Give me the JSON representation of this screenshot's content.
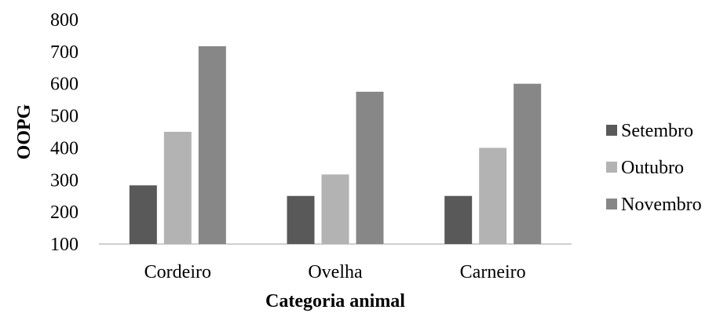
{
  "chart_data": {
    "type": "bar",
    "title": "",
    "xlabel": "Categoria animal",
    "ylabel": "OOPG",
    "categories": [
      "Cordeiro",
      "Ovelha",
      "Carneiro"
    ],
    "series": [
      {
        "name": "Setembro",
        "values": [
          283,
          250,
          250
        ],
        "color": "#595959"
      },
      {
        "name": "Outubro",
        "values": [
          450,
          317,
          400
        ],
        "color": "#b3b3b3"
      },
      {
        "name": "Novembro",
        "values": [
          717,
          575,
          600
        ],
        "color": "#878787"
      }
    ],
    "ylim": [
      100,
      800
    ],
    "yticks": [
      100,
      200,
      300,
      400,
      500,
      600,
      700,
      800
    ],
    "grid": false,
    "legend_position": "right"
  }
}
